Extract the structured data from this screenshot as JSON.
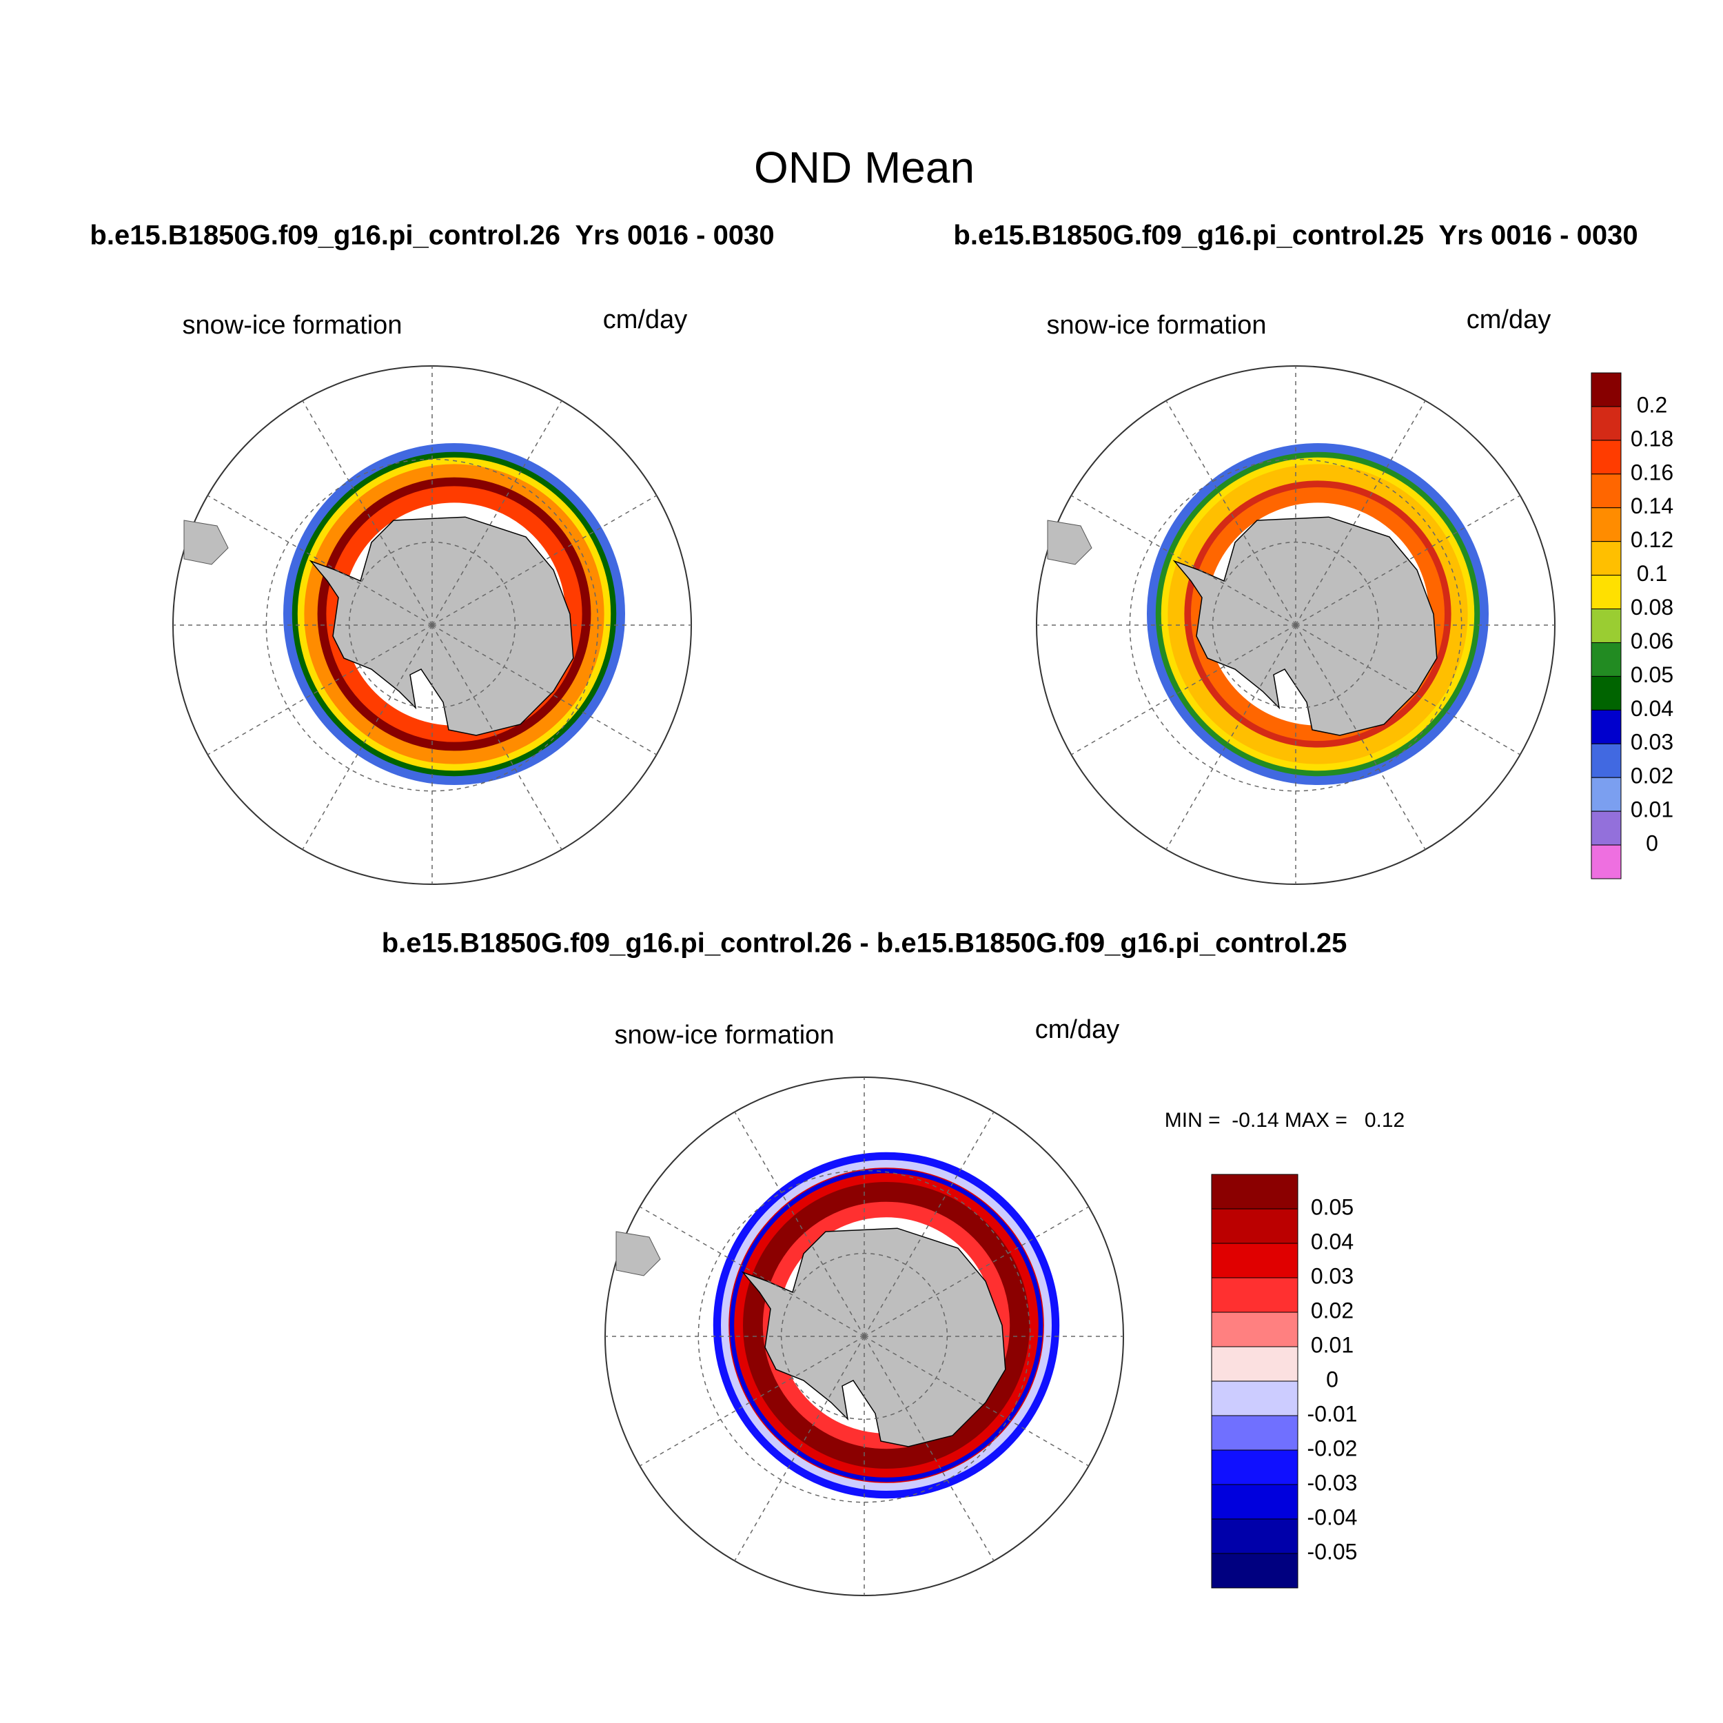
{
  "title": "OND Mean",
  "panels": [
    {
      "title": "b.e15.B1850G.f09_g16.pi_control.26  Yrs 0016 - 0030",
      "left_label": "snow-ice formation",
      "right_label": "cm/day"
    },
    {
      "title": "b.e15.B1850G.f09_g16.pi_control.25  Yrs 0016 - 0030",
      "left_label": "snow-ice formation",
      "right_label": "cm/day"
    }
  ],
  "difference": {
    "title": "b.e15.B1850G.f09_g16.pi_control.26 - b.e15.B1850G.f09_g16.pi_control.25",
    "left_label": "snow-ice formation",
    "right_label": "cm/day",
    "stats": "MIN =  -0.14 MAX =   0.12"
  },
  "colorbars": [
    {
      "labels": [
        "0.2",
        "0.18",
        "0.16",
        "0.14",
        "0.12",
        "0.1",
        "0.08",
        "0.06",
        "0.05",
        "0.04",
        "0.03",
        "0.02",
        "0.01",
        "0"
      ],
      "colors": [
        "#870000",
        "#d42a16",
        "#ff3c00",
        "#ff6600",
        "#ff8c00",
        "#ffbf00",
        "#ffe000",
        "#9acd32",
        "#228b22",
        "#006400",
        "#0000cd",
        "#4169e1",
        "#7b9ff0",
        "#9370db",
        "#ee6fe0"
      ]
    },
    {
      "labels": [
        "0.05",
        "0.04",
        "0.03",
        "0.02",
        "0.01",
        "0",
        "-0.01",
        "-0.02",
        "-0.03",
        "-0.04",
        "-0.05"
      ],
      "colors": [
        "#8b0000",
        "#bb0000",
        "#e00000",
        "#ff3030",
        "#ff8080",
        "#fbe0e0",
        "#ccccff",
        "#7070ff",
        "#1010ff",
        "#0000dd",
        "#0000aa",
        "#000080"
      ]
    }
  ]
}
